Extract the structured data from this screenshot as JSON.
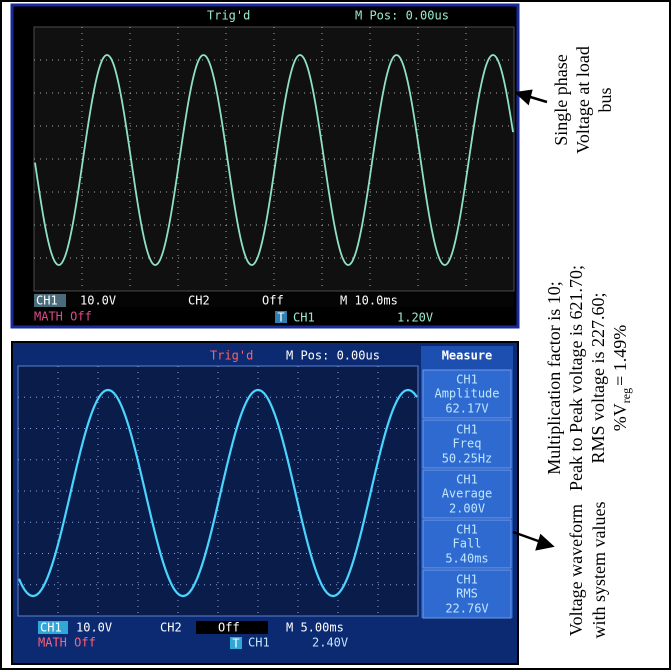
{
  "top_scope": {
    "status": "Trig'd",
    "position": "M Pos: 0.00us",
    "ch1_label": "CH1",
    "ch1_scale": "10.0V",
    "ch2_label": "CH2",
    "ch2_state": "Off",
    "timebase": "M 10.0ms",
    "math": "MATH Off",
    "trigger_icon": "T",
    "trigger_source": "CH1",
    "trigger_level": "1.20V"
  },
  "bottom_scope": {
    "status": "Trig'd",
    "position": "M Pos: 0.00us",
    "measure_title": "Measure",
    "measurements": [
      {
        "channel": "CH1",
        "name": "Amplitude",
        "value": "62.17V"
      },
      {
        "channel": "CH1",
        "name": "Freq",
        "value": "50.25Hz"
      },
      {
        "channel": "CH1",
        "name": "Average",
        "value": "2.00V"
      },
      {
        "channel": "CH1",
        "name": "Fall",
        "value": "5.40ms"
      },
      {
        "channel": "CH1",
        "name": "RMS",
        "value": "22.76V"
      }
    ],
    "ch1_label": "CH1",
    "ch1_scale": "10.0V",
    "ch2_label": "CH2",
    "ch2_state": "Off",
    "timebase": "M 5.00ms",
    "math": "MATH Off",
    "trigger_icon": "T",
    "trigger_source": "CH1",
    "trigger_level": "2.40V"
  },
  "annotations": {
    "top": [
      "Single phase",
      "Voltage at load",
      "bus"
    ],
    "middle": [
      "Multiplication factor is 10;",
      "Peak to Peak voltage is 621.70;",
      "RMS voltage is 227.60;"
    ],
    "vreg": {
      "prefix": "%V",
      "subscript": "reg",
      "suffix": "= 1.49%"
    },
    "bottom": [
      "Voltage waveform",
      "with system values"
    ]
  }
}
